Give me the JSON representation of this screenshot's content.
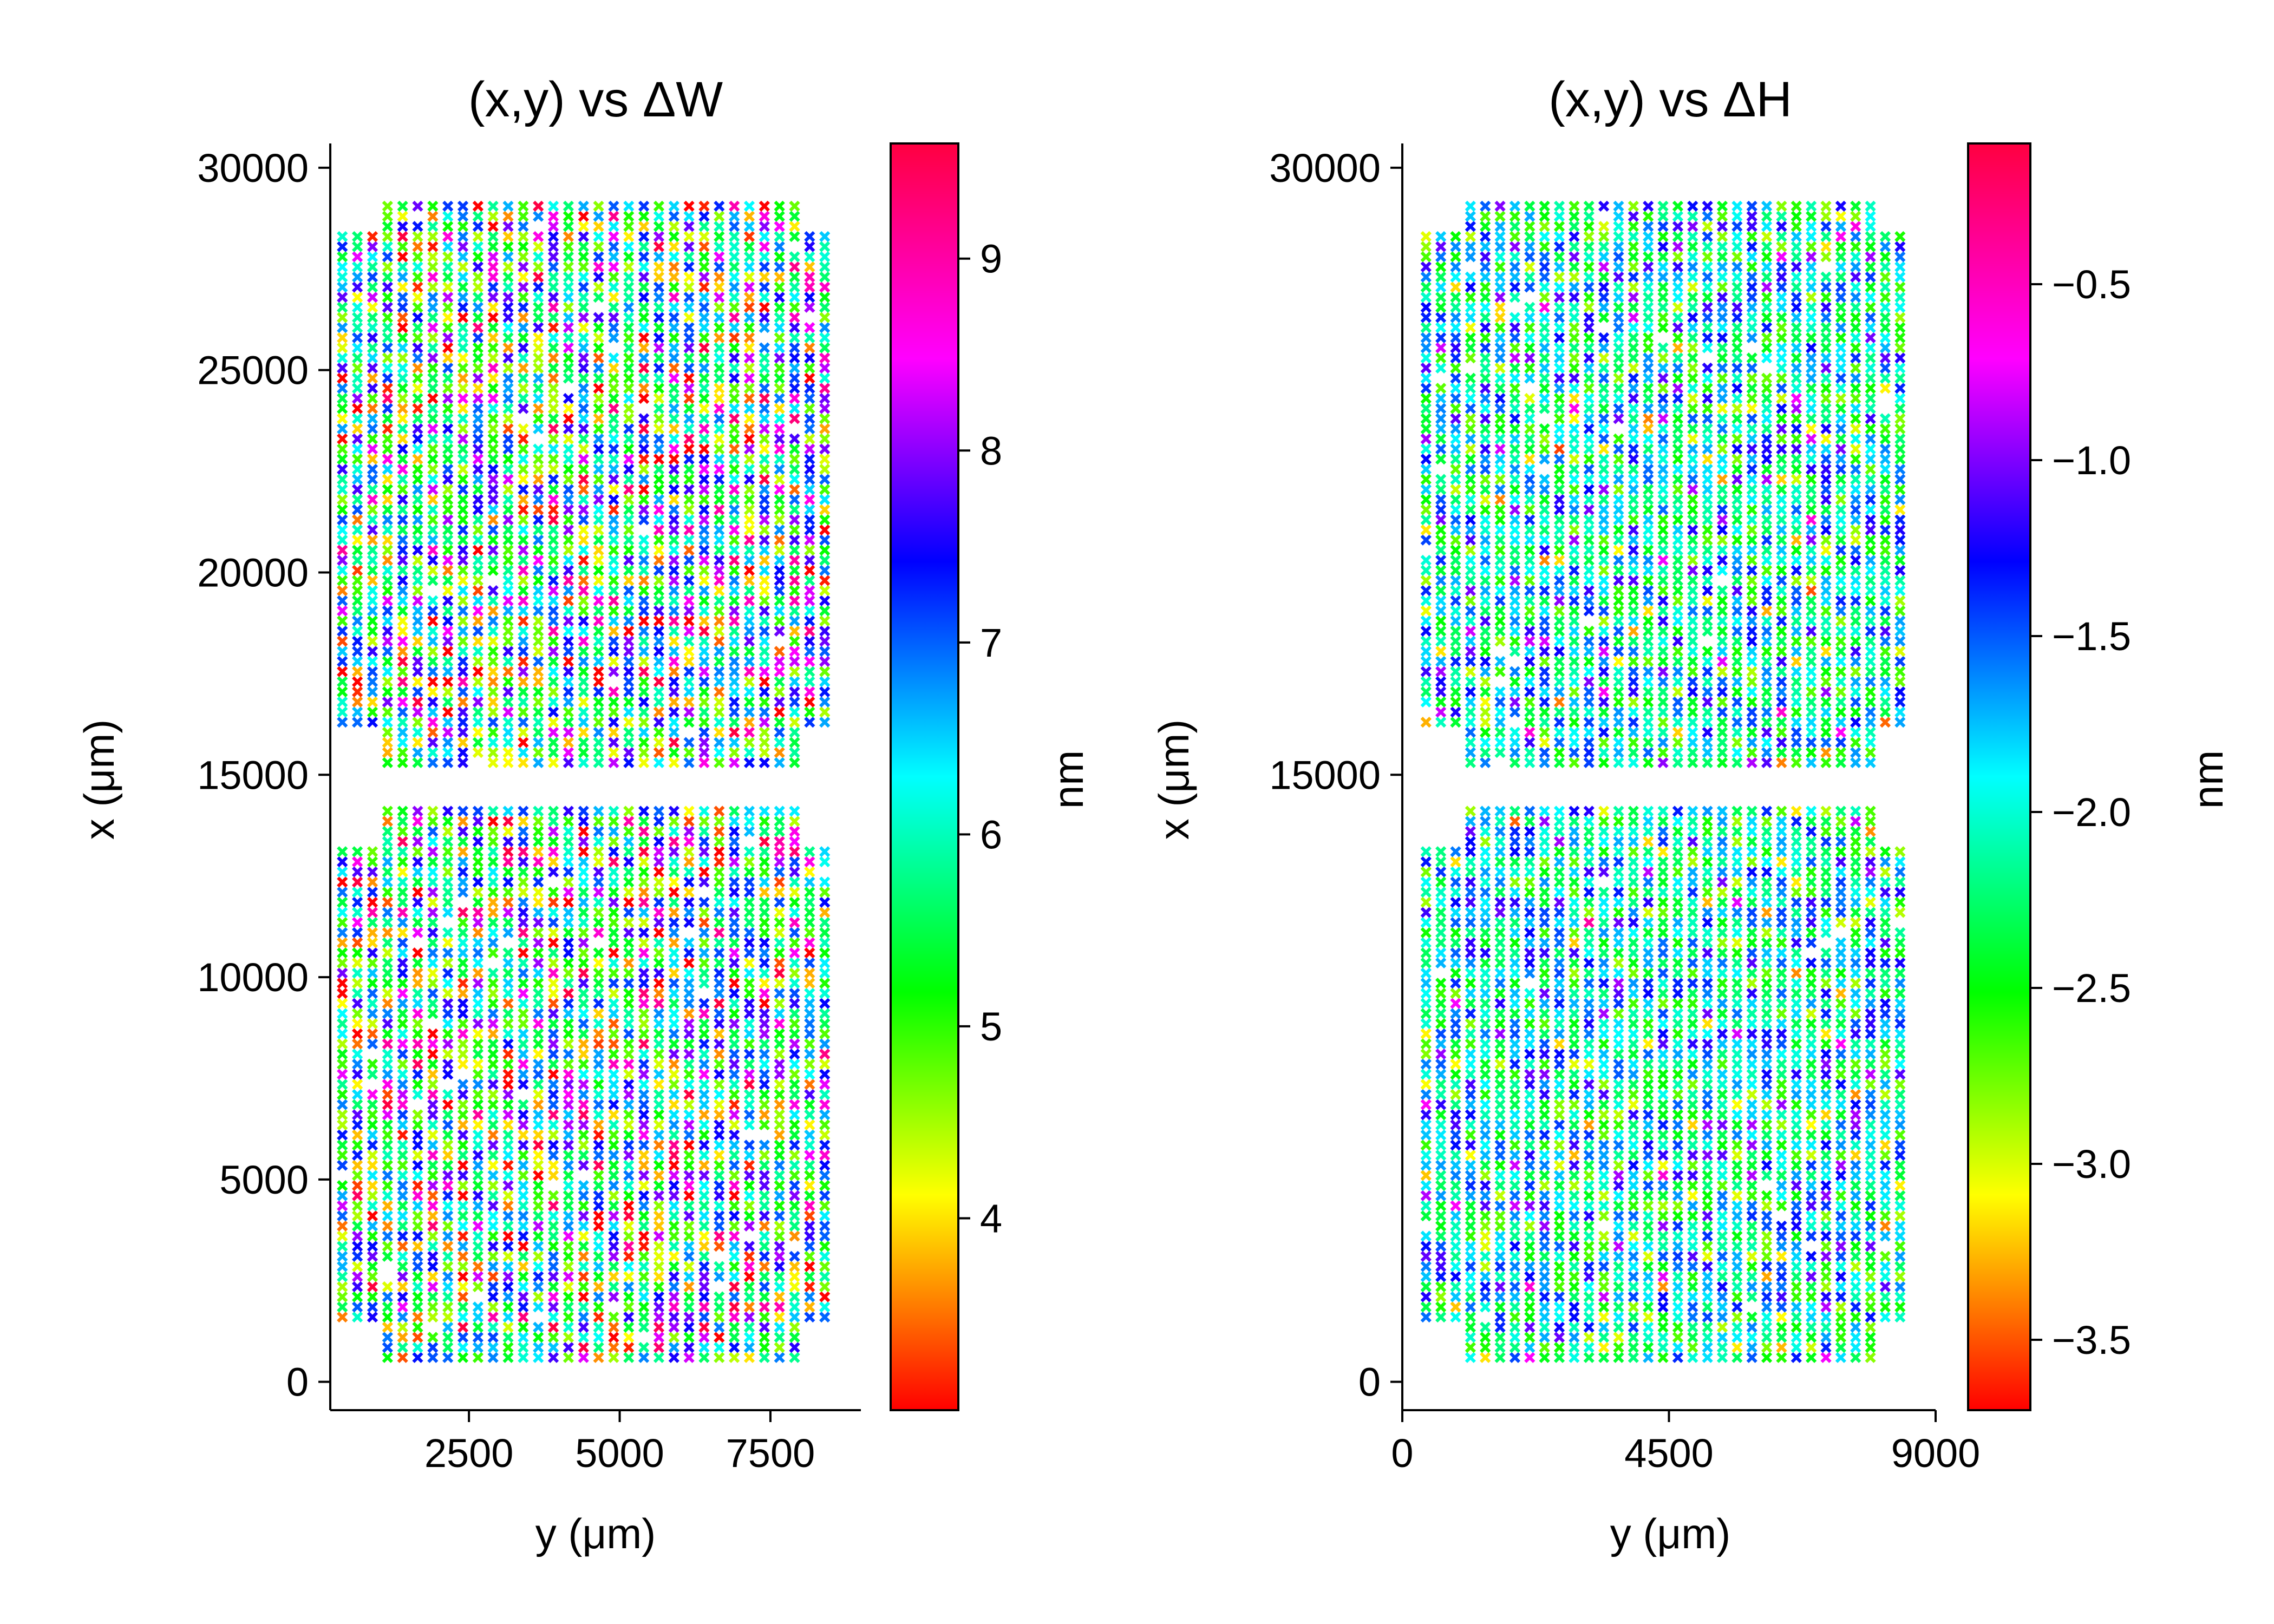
{
  "chart_data": [
    {
      "type": "scatter",
      "title": "(x,y) vs ΔW",
      "xlabel": "y (μm)",
      "ylabel": "x (μm)",
      "xlim": [
        200,
        9000
      ],
      "ylim": [
        -700,
        30600
      ],
      "xticks": [
        "2500",
        "5000",
        "7500"
      ],
      "xtick_values": [
        2500,
        5000,
        7500
      ],
      "yticks": [
        "0",
        "5000",
        "10000",
        "15000",
        "20000",
        "25000",
        "30000"
      ],
      "ytick_values": [
        0,
        5000,
        10000,
        15000,
        20000,
        25000,
        30000
      ],
      "marker": "x",
      "grid": false,
      "grid_spacing_um": 250,
      "lower_block": {
        "y_range": [
          400,
          8600
        ],
        "x_range": [
          600,
          14100
        ]
      },
      "upper_block": {
        "y_range": [
          400,
          8600
        ],
        "x_range": [
          15300,
          29200
        ]
      },
      "colorbar": {
        "label": "nm",
        "colormap": "gist_rainbow_r",
        "range": [
          3.0,
          9.6
        ],
        "ticks": [
          "4",
          "5",
          "6",
          "7",
          "8",
          "9"
        ],
        "tick_values": [
          4,
          5,
          6,
          7,
          8,
          9
        ]
      },
      "value_pattern": {
        "base": 6.0,
        "spread": 1.6,
        "trend_x": 0.0,
        "trend_y": 0.12
      }
    },
    {
      "type": "scatter",
      "title": "(x,y) vs ΔH",
      "xlabel": "y (μm)",
      "ylabel": "x (μm)",
      "xlim": [
        0,
        9000
      ],
      "ylim": [
        -700,
        30600
      ],
      "xticks": [
        "0",
        "4500",
        "9000"
      ],
      "xtick_values": [
        0,
        4500,
        9000
      ],
      "yticks": [
        "0",
        "15000",
        "30000"
      ],
      "ytick_values": [
        0,
        15000,
        30000
      ],
      "marker": "x",
      "grid": false,
      "grid_spacing_um": 250,
      "lower_block": {
        "y_range": [
          400,
          8600
        ],
        "x_range": [
          600,
          14100
        ]
      },
      "upper_block": {
        "y_range": [
          400,
          8600
        ],
        "x_range": [
          15300,
          29200
        ]
      },
      "colorbar": {
        "label": "nm",
        "colormap": "gist_rainbow_r",
        "range": [
          -3.7,
          -0.1
        ],
        "ticks": [
          "−3.5",
          "−3.0",
          "−2.5",
          "−2.0",
          "−1.5",
          "−1.0",
          "−0.5"
        ],
        "tick_values": [
          -3.5,
          -3.0,
          -2.5,
          -2.0,
          -1.5,
          -1.0,
          -0.5
        ]
      },
      "value_pattern": {
        "base": -2.0,
        "spread": 0.55,
        "trend_x": 0.0,
        "trend_y": 0.0
      }
    }
  ]
}
